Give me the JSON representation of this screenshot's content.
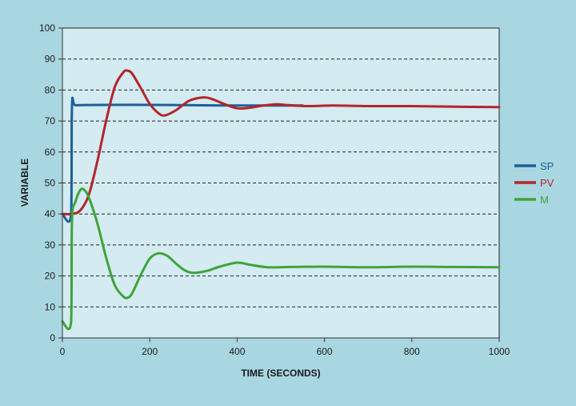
{
  "chart_data": {
    "type": "line",
    "xlabel": "TIME (SECONDS)",
    "ylabel": "VARIABLE",
    "xlim": [
      0,
      1000
    ],
    "ylim": [
      0,
      100
    ],
    "xticks": [
      0,
      200,
      400,
      600,
      800,
      1000
    ],
    "yticks": [
      0,
      10,
      20,
      30,
      40,
      50,
      60,
      70,
      80,
      90,
      100
    ],
    "grid": "horizontal dashed",
    "legend_position": "right",
    "colors": {
      "background": "#a9d7e1",
      "plot_area": "#d3ebf1",
      "grid": "#222222"
    },
    "series": [
      {
        "name": "SP",
        "color": "#1e5f9c",
        "x": [
          0,
          20,
          22,
          30,
          100,
          200,
          300,
          400,
          500,
          550
        ],
        "y": [
          40,
          40,
          75,
          75.1,
          75.2,
          75.2,
          75.1,
          75,
          75,
          75
        ]
      },
      {
        "name": "PV",
        "color": "#b3262a",
        "x": [
          0,
          20,
          40,
          60,
          80,
          100,
          120,
          140,
          150,
          160,
          180,
          200,
          220,
          235,
          260,
          290,
          320,
          340,
          370,
          400,
          430,
          460,
          490,
          520,
          560,
          620,
          700,
          800,
          900,
          1000
        ],
        "y": [
          40,
          40,
          41,
          46,
          57,
          70,
          81,
          85.8,
          86.2,
          85.2,
          80.5,
          75.5,
          72.5,
          71.8,
          73.5,
          76.5,
          77.6,
          77.2,
          75.5,
          74.1,
          74.3,
          75,
          75.4,
          75.1,
          74.8,
          75,
          74.8,
          74.8,
          74.6,
          74.5
        ]
      },
      {
        "name": "M",
        "color": "#3fa33b",
        "x": [
          0,
          20,
          22,
          30,
          40,
          48,
          60,
          80,
          100,
          120,
          140,
          150,
          160,
          180,
          200,
          220,
          240,
          260,
          280,
          300,
          330,
          360,
          400,
          430,
          470,
          520,
          600,
          700,
          800,
          900,
          1000
        ],
        "y": [
          5.3,
          5.2,
          38,
          44,
          47.5,
          48,
          45.5,
          37,
          26,
          17,
          13.3,
          13,
          14.5,
          20.5,
          25.6,
          27.3,
          26.5,
          24,
          21.8,
          21,
          21.6,
          23,
          24.3,
          23.6,
          22.8,
          22.9,
          23,
          22.8,
          23,
          22.9,
          22.8
        ]
      }
    ]
  }
}
